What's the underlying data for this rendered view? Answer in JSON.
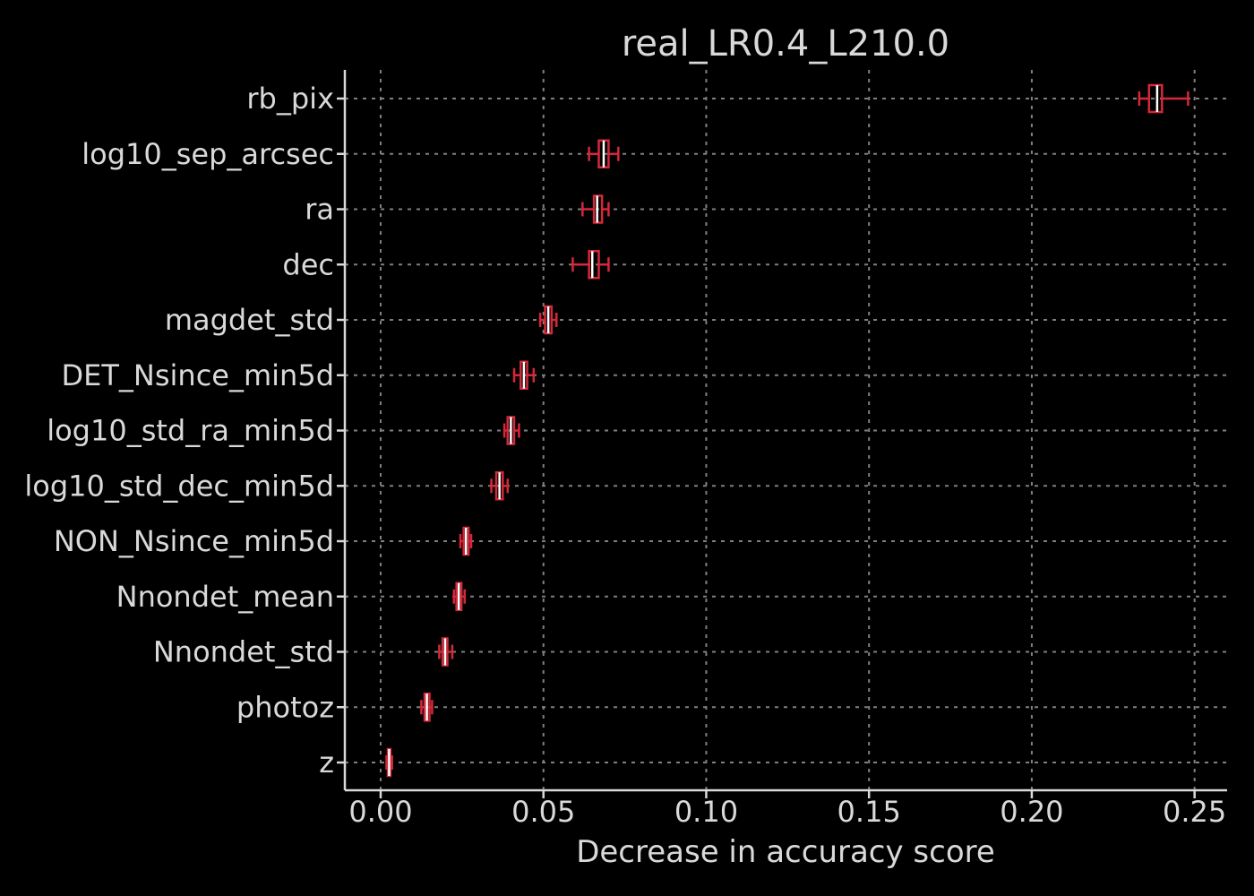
{
  "chart_data": {
    "type": "box",
    "orientation": "horizontal",
    "title": "real_LR0.4_L210.0",
    "xlabel": "Decrease in accuracy score",
    "ylabel": "",
    "xlim": [
      -0.011,
      0.26
    ],
    "xticks": [
      0.0,
      0.05,
      0.1,
      0.15,
      0.2,
      0.25
    ],
    "xtick_labels": [
      "0.00",
      "0.05",
      "0.10",
      "0.15",
      "0.20",
      "0.25"
    ],
    "grid": true,
    "colors": {
      "box": "#d62839",
      "median": "#ffffff",
      "grid": "#808080",
      "axis": "#d9d9d9",
      "background": "#000000"
    },
    "categories": [
      "rb_pix",
      "log10_sep_arcsec",
      "ra",
      "dec",
      "magdet_std",
      "DET_Nsince_min5d",
      "log10_std_ra_min5d",
      "log10_std_dec_min5d",
      "NON_Nsince_min5d",
      "Nnondet_mean",
      "Nnondet_std",
      "photoz",
      "z"
    ],
    "boxes": [
      {
        "label": "rb_pix",
        "whislo": 0.233,
        "q1": 0.236,
        "median": 0.2385,
        "q3": 0.24,
        "whishi": 0.248
      },
      {
        "label": "log10_sep_arcsec",
        "whislo": 0.064,
        "q1": 0.067,
        "median": 0.0685,
        "q3": 0.07,
        "whishi": 0.073
      },
      {
        "label": "ra",
        "whislo": 0.062,
        "q1": 0.0655,
        "median": 0.0665,
        "q3": 0.068,
        "whishi": 0.07
      },
      {
        "label": "dec",
        "whislo": 0.059,
        "q1": 0.064,
        "median": 0.065,
        "q3": 0.067,
        "whishi": 0.07
      },
      {
        "label": "magdet_std",
        "whislo": 0.049,
        "q1": 0.0505,
        "median": 0.0515,
        "q3": 0.0525,
        "whishi": 0.054
      },
      {
        "label": "DET_Nsince_min5d",
        "whislo": 0.041,
        "q1": 0.043,
        "median": 0.044,
        "q3": 0.045,
        "whishi": 0.047
      },
      {
        "label": "log10_std_ra_min5d",
        "whislo": 0.038,
        "q1": 0.039,
        "median": 0.04,
        "q3": 0.041,
        "whishi": 0.0425
      },
      {
        "label": "log10_std_dec_min5d",
        "whislo": 0.034,
        "q1": 0.0355,
        "median": 0.0365,
        "q3": 0.0375,
        "whishi": 0.039
      },
      {
        "label": "NON_Nsince_min5d",
        "whislo": 0.0245,
        "q1": 0.0255,
        "median": 0.0262,
        "q3": 0.027,
        "whishi": 0.0278
      },
      {
        "label": "Nnondet_mean",
        "whislo": 0.0225,
        "q1": 0.0233,
        "median": 0.024,
        "q3": 0.0248,
        "whishi": 0.0258
      },
      {
        "label": "Nnondet_std",
        "whislo": 0.018,
        "q1": 0.019,
        "median": 0.0198,
        "q3": 0.0205,
        "whishi": 0.022
      },
      {
        "label": "photoz",
        "whislo": 0.0125,
        "q1": 0.0135,
        "median": 0.0142,
        "q3": 0.015,
        "whishi": 0.0158
      },
      {
        "label": "z",
        "whislo": 0.0018,
        "q1": 0.0022,
        "median": 0.0026,
        "q3": 0.003,
        "whishi": 0.0035
      }
    ]
  }
}
